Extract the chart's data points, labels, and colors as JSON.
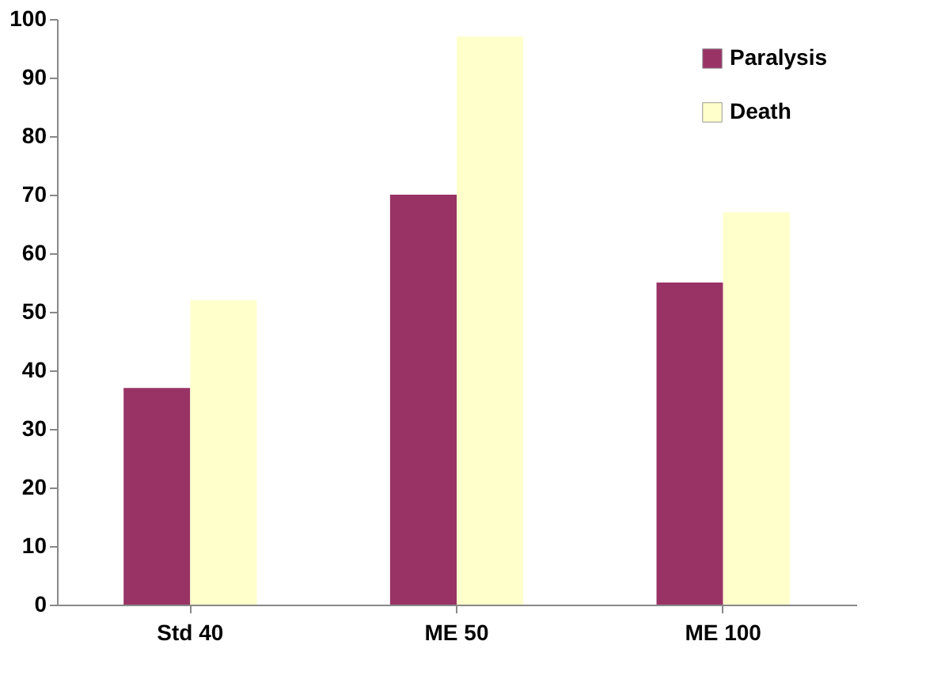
{
  "chart_data": {
    "type": "bar",
    "categories": [
      "Std 40",
      "ME 50",
      "ME 100"
    ],
    "series": [
      {
        "name": "Paralysis",
        "color": "#993366",
        "values": [
          37,
          70,
          55
        ]
      },
      {
        "name": "Death",
        "color": "#ffffcc",
        "values": [
          52,
          97,
          67
        ]
      }
    ],
    "ylim": [
      0,
      100
    ],
    "yticks": [
      0,
      10,
      20,
      30,
      40,
      50,
      60,
      70,
      80,
      90,
      100
    ],
    "grid": false,
    "legend": "top right"
  }
}
